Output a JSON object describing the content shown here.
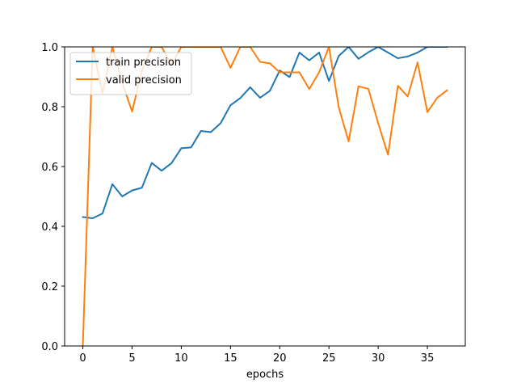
{
  "chart_data": {
    "type": "line",
    "title": "",
    "xlabel": "epochs",
    "ylabel": "",
    "xlim": [
      -1.85,
      38.85
    ],
    "ylim": [
      0.0,
      1.0
    ],
    "xticks": [
      0,
      5,
      10,
      15,
      20,
      25,
      30,
      35
    ],
    "yticks": [
      0.0,
      0.2,
      0.4,
      0.6,
      0.8,
      1.0
    ],
    "grid": false,
    "legend_position": "top-left",
    "x": [
      0,
      1,
      2,
      3,
      4,
      5,
      6,
      7,
      8,
      9,
      10,
      11,
      12,
      13,
      14,
      15,
      16,
      17,
      18,
      19,
      20,
      21,
      22,
      23,
      24,
      25,
      26,
      27,
      28,
      29,
      30,
      31,
      32,
      33,
      34,
      35,
      36,
      37
    ],
    "series": [
      {
        "name": "train precision",
        "color": "#1f77b4",
        "values": [
          0.431,
          0.427,
          0.443,
          0.541,
          0.5,
          0.52,
          0.529,
          0.612,
          0.586,
          0.611,
          0.661,
          0.664,
          0.719,
          0.715,
          0.745,
          0.805,
          0.829,
          0.865,
          0.83,
          0.853,
          0.921,
          0.899,
          0.981,
          0.955,
          0.981,
          0.886,
          0.97,
          1.0,
          0.96,
          0.982,
          1.0,
          0.981,
          0.962,
          0.968,
          0.981,
          1.0,
          1.0,
          1.0
        ]
      },
      {
        "name": "valid precision",
        "color": "#ff7f0e",
        "values": [
          0.0,
          1.0,
          0.845,
          1.0,
          0.88,
          0.784,
          0.92,
          1.0,
          1.0,
          0.94,
          1.0,
          1.0,
          1.0,
          1.0,
          1.0,
          0.93,
          1.0,
          1.0,
          0.95,
          0.945,
          0.915,
          0.915,
          0.915,
          0.859,
          0.915,
          1.0,
          0.797,
          0.684,
          0.868,
          0.86,
          0.745,
          0.639,
          0.87,
          0.834,
          0.948,
          0.782,
          0.83,
          0.855
        ]
      }
    ]
  }
}
